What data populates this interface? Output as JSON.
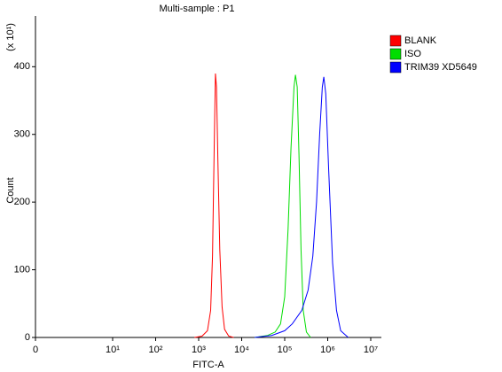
{
  "chart_data": {
    "type": "line",
    "title": "Multi-sample : P1",
    "xlabel": "FITC-A",
    "ylabel": "Count",
    "yunit": "(x 10¹)",
    "xscale": "log",
    "xlim": [
      0,
      10000000
    ],
    "ylim": [
      0,
      475
    ],
    "xticks": [
      0,
      {
        "value": 10,
        "label": "10¹"
      },
      {
        "value": 100,
        "label": "10²"
      },
      {
        "value": 1000,
        "label": "10³"
      },
      {
        "value": 10000,
        "label": "10⁴"
      },
      {
        "value": 100000,
        "label": "10⁵"
      },
      {
        "value": 1000000,
        "label": "10⁶"
      },
      {
        "value": 10000000,
        "label": "10⁷"
      }
    ],
    "yticks": [
      0,
      100,
      200,
      300,
      400
    ],
    "legend": "right",
    "series": [
      {
        "name": "BLANK",
        "color": "#ff0000",
        "x": [
          800,
          1200,
          1600,
          1900,
          2100,
          2300,
          2450,
          2600,
          2800,
          3100,
          3500,
          4000,
          5000,
          6500
        ],
        "values": [
          0,
          2,
          10,
          40,
          120,
          280,
          390,
          370,
          260,
          130,
          45,
          12,
          2,
          0
        ]
      },
      {
        "name": "ISO",
        "color": "#00dd00",
        "x": [
          20000,
          40000,
          60000,
          80000,
          100000,
          120000,
          140000,
          165000,
          178000,
          195000,
          215000,
          240000,
          270000,
          320000,
          400000
        ],
        "values": [
          0,
          3,
          8,
          20,
          60,
          160,
          280,
          370,
          388,
          370,
          270,
          130,
          40,
          8,
          0
        ]
      },
      {
        "name": "TRIM39 XD5649",
        "color": "#0000ff",
        "x": [
          20000,
          50000,
          100000,
          150000,
          250000,
          350000,
          450000,
          550000,
          650000,
          750000,
          810000,
          900000,
          1050000,
          1300000,
          1600000,
          2000000,
          3000000
        ],
        "values": [
          0,
          3,
          10,
          20,
          40,
          70,
          120,
          200,
          300,
          370,
          385,
          360,
          250,
          110,
          40,
          10,
          0
        ]
      }
    ]
  }
}
